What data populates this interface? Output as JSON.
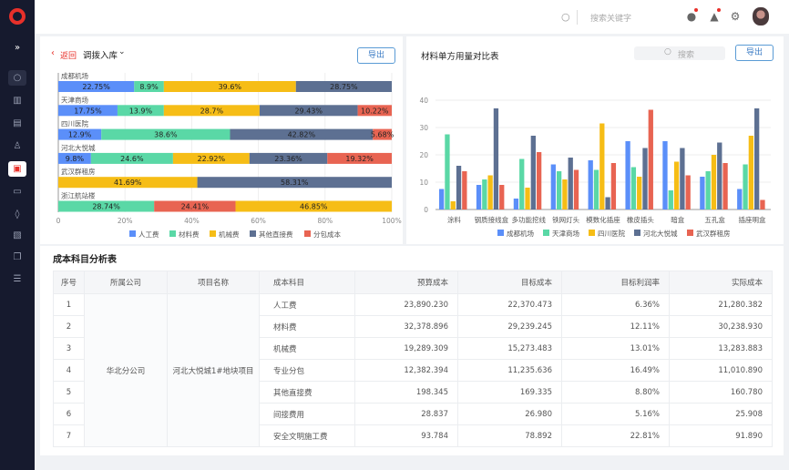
{
  "header": {
    "search_placeholder": "搜索关键字"
  },
  "sidebar": {
    "items": [
      "expand",
      "search",
      "building",
      "clipboard-check",
      "stamp",
      "clipboard-active",
      "folder",
      "water",
      "file-gear",
      "copy",
      "list-settings"
    ]
  },
  "colors": {
    "blue": "#5b8ff9",
    "green": "#5ad8a6",
    "yellow": "#f6bd16",
    "slate": "#5d7092",
    "red": "#e86452",
    "accent": "#e8302a"
  },
  "left_panel": {
    "back_label": "返回",
    "dropdown_label": "调拨入库",
    "export_label": "导出"
  },
  "right_panel": {
    "title": "材料单方用量对比表",
    "search_placeholder": "搜索",
    "export_label": "导出"
  },
  "chart_data": [
    {
      "type": "bar",
      "orientation": "horizontal",
      "stacked": true,
      "categories": [
        "成都机场",
        "天津商场",
        "四川医院",
        "河北大悦城",
        "武汉群租房",
        "浙江航站楼"
      ],
      "series_names": [
        "人工费",
        "材料费",
        "机械费",
        "其他直接费",
        "分包成本"
      ],
      "rows": [
        [
          {
            "s": 0,
            "v": 22.75,
            "label": "22.75%"
          },
          {
            "s": 1,
            "v": 8.9,
            "label": "8.9%"
          },
          {
            "s": 2,
            "v": 39.6,
            "label": "39.6%"
          },
          {
            "s": 3,
            "v": 28.75,
            "label": "28.75%"
          }
        ],
        [
          {
            "s": 0,
            "v": 17.75,
            "label": "17.75%"
          },
          {
            "s": 1,
            "v": 13.9,
            "label": "13.9%"
          },
          {
            "s": 2,
            "v": 28.7,
            "label": "28.7%"
          },
          {
            "s": 3,
            "v": 29.43,
            "label": "29.43%"
          },
          {
            "s": 4,
            "v": 10.22,
            "label": "10.22%"
          }
        ],
        [
          {
            "s": 0,
            "v": 12.9,
            "label": "12.9%"
          },
          {
            "s": 1,
            "v": 38.6,
            "label": "38.6%"
          },
          {
            "s": 3,
            "v": 42.82,
            "label": "42.82%"
          },
          {
            "s": 4,
            "v": 5.68,
            "label": "5.68%"
          }
        ],
        [
          {
            "s": 0,
            "v": 9.8,
            "label": "9.8%"
          },
          {
            "s": 1,
            "v": 24.6,
            "label": "24.6%"
          },
          {
            "s": 2,
            "v": 22.92,
            "label": "22.92%"
          },
          {
            "s": 3,
            "v": 23.36,
            "label": "23.36%"
          },
          {
            "s": 4,
            "v": 19.32,
            "label": "19.32%"
          }
        ],
        [
          {
            "s": 2,
            "v": 41.69,
            "label": "41.69%"
          },
          {
            "s": 3,
            "v": 58.31,
            "label": "58.31%"
          }
        ],
        [
          {
            "s": 1,
            "v": 28.74,
            "label": "28.74%"
          },
          {
            "s": 4,
            "v": 24.41,
            "label": "24.41%"
          },
          {
            "s": 2,
            "v": 46.85,
            "label": "46.85%"
          }
        ]
      ],
      "xticks": [
        "0",
        "20%",
        "40%",
        "60%",
        "80%",
        "100%"
      ],
      "xlim": [
        0,
        100
      ],
      "legend": "bottom",
      "grid": true
    },
    {
      "type": "bar",
      "title": "材料单方用量对比表",
      "categories": [
        "涂料",
        "钢质接线盒",
        "多功能挖线",
        "铁网灯头",
        "模数化插座",
        "橡皮插头",
        "暗盒",
        "五孔盒",
        "插座明盒"
      ],
      "series": [
        {
          "name": "成都机场",
          "values": [
            7.5,
            9,
            4,
            16.5,
            18,
            25,
            25,
            12,
            7.5
          ]
        },
        {
          "name": "天津商场",
          "values": [
            27.5,
            11,
            18.5,
            14,
            14.5,
            15.5,
            7,
            14,
            16.5
          ]
        },
        {
          "name": "四川医院",
          "values": [
            3,
            12.5,
            8,
            11,
            31.5,
            12,
            17.5,
            20,
            27
          ]
        },
        {
          "name": "河北大悦城",
          "values": [
            16,
            37,
            27,
            19,
            4.5,
            22.5,
            22.5,
            24.5,
            37
          ]
        },
        {
          "name": "武汉群租房",
          "values": [
            14,
            9,
            21,
            14.5,
            17,
            36.5,
            12.5,
            17,
            3.5
          ]
        }
      ],
      "yticks": [
        "0",
        "10",
        "20",
        "30",
        "40"
      ],
      "ylim": [
        0,
        44
      ],
      "legend": "bottom",
      "grid": true
    }
  ],
  "table": {
    "title": "成本科目分析表",
    "columns": [
      "序号",
      "所属公司",
      "项目名称",
      "成本科目",
      "预算成本",
      "目标成本",
      "目标利润率",
      "实际成本"
    ],
    "company": "华北分公司",
    "project": "河北大悦城1#地块项目",
    "rows": [
      [
        "1",
        "人工费",
        "23,890.230",
        "22,370.473",
        "6.36%",
        "21,280.382"
      ],
      [
        "2",
        "材料费",
        "32,378.896",
        "29,239.245",
        "12.11%",
        "30,238.930"
      ],
      [
        "3",
        "机械费",
        "19,289.309",
        "15,273.483",
        "13.01%",
        "13,283.883"
      ],
      [
        "4",
        "专业分包",
        "12,382.394",
        "11,235.636",
        "16.49%",
        "11,010.890"
      ],
      [
        "5",
        "其他直接费",
        "198.345",
        "169.335",
        "8.80%",
        "160.780"
      ],
      [
        "6",
        "间接费用",
        "28.837",
        "26.980",
        "5.16%",
        "25.908"
      ],
      [
        "7",
        "安全文明施工费",
        "93.784",
        "78.892",
        "22.81%",
        "91.890"
      ]
    ]
  }
}
